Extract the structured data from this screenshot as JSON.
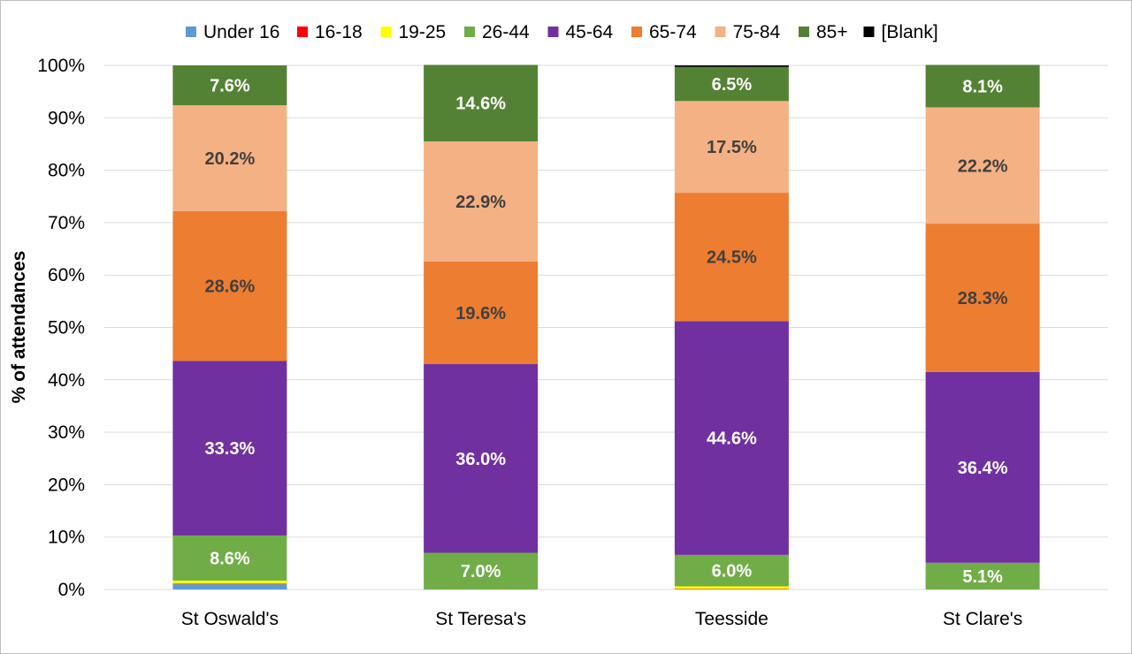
{
  "chart_data": {
    "type": "bar",
    "stacked": "percent",
    "title": "",
    "xlabel": "",
    "ylabel": "% of attendances",
    "ylim": [
      0,
      100
    ],
    "y_ticks": [
      "0%",
      "10%",
      "20%",
      "30%",
      "40%",
      "50%",
      "60%",
      "70%",
      "80%",
      "90%",
      "100%"
    ],
    "grid": true,
    "legend_position": "top",
    "categories": [
      "St Oswald's",
      "St Teresa's",
      "Teesside",
      "St Clare's"
    ],
    "series": [
      {
        "name": "Under 16",
        "color": "#5b9bd5",
        "values": [
          1.0,
          0.0,
          0.0,
          0.0
        ]
      },
      {
        "name": "16-18",
        "color": "#ff0000",
        "values": [
          0.1,
          0.0,
          0.1,
          0.0
        ]
      },
      {
        "name": "19-25",
        "color": "#ffff00",
        "values": [
          0.6,
          0.0,
          0.5,
          0.0
        ]
      },
      {
        "name": "26-44",
        "color": "#70ad47",
        "values": [
          8.6,
          7.0,
          6.0,
          5.1
        ]
      },
      {
        "name": "45-64",
        "color": "#7030a0",
        "values": [
          33.3,
          36.0,
          44.6,
          36.4
        ]
      },
      {
        "name": "65-74",
        "color": "#ed7d31",
        "values": [
          28.6,
          19.6,
          24.5,
          28.3
        ]
      },
      {
        "name": "75-84",
        "color": "#f4b183",
        "values": [
          20.2,
          22.9,
          17.5,
          22.2
        ]
      },
      {
        "name": "85+",
        "color": "#548235",
        "values": [
          7.6,
          14.6,
          6.5,
          8.1
        ]
      },
      {
        "name": "[Blank]",
        "color": "#000000",
        "values": [
          0.0,
          0.0,
          0.3,
          0.0
        ]
      }
    ],
    "data_labels": [
      {
        "series": "26-44",
        "labels": [
          "8.6%",
          "7.0%",
          "6.0%",
          "5.1%"
        ],
        "color": "#ffffff"
      },
      {
        "series": "45-64",
        "labels": [
          "33.3%",
          "36.0%",
          "44.6%",
          "36.4%"
        ],
        "color": "#ffffff"
      },
      {
        "series": "65-74",
        "labels": [
          "28.6%",
          "19.6%",
          "24.5%",
          "28.3%"
        ],
        "color": "#404040"
      },
      {
        "series": "75-84",
        "labels": [
          "20.2%",
          "22.9%",
          "17.5%",
          "22.2%"
        ],
        "color": "#404040"
      },
      {
        "series": "85+",
        "labels": [
          "7.6%",
          "14.6%",
          "6.5%",
          "8.1%"
        ],
        "color": "#ffffff"
      }
    ]
  }
}
